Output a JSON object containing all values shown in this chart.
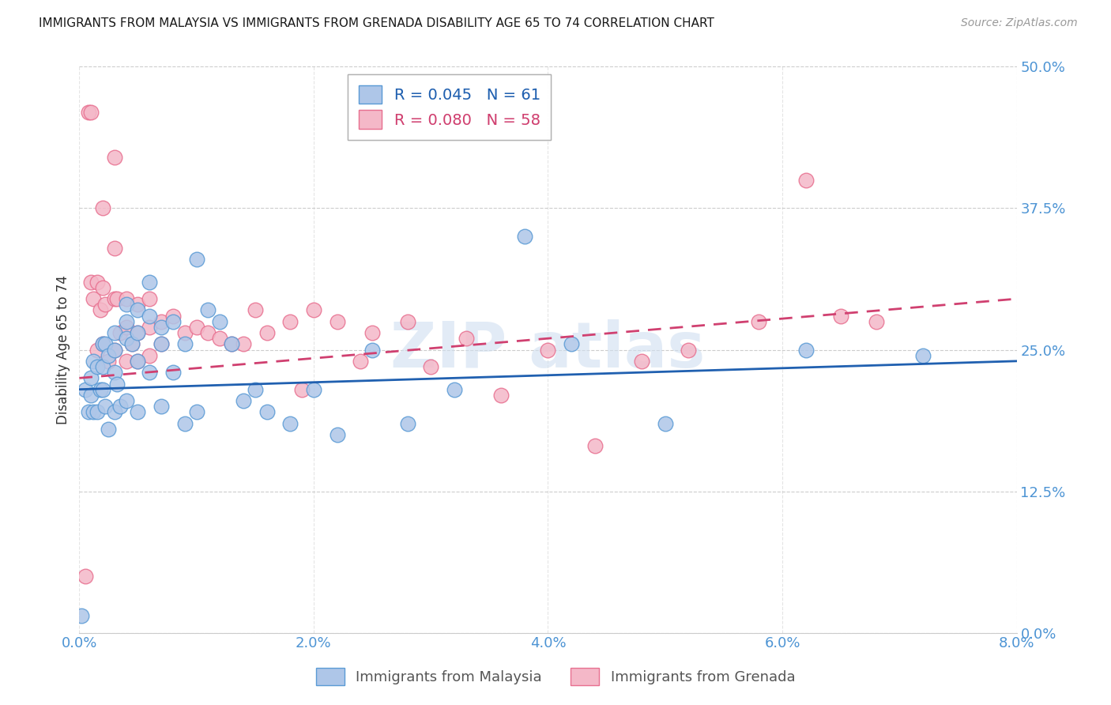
{
  "title": "IMMIGRANTS FROM MALAYSIA VS IMMIGRANTS FROM GRENADA DISABILITY AGE 65 TO 74 CORRELATION CHART",
  "source": "Source: ZipAtlas.com",
  "ylabel": "Disability Age 65 to 74",
  "xlim": [
    0.0,
    0.08
  ],
  "ylim": [
    0.0,
    0.5
  ],
  "malaysia_color": "#aec6e8",
  "grenada_color": "#f4b8c8",
  "malaysia_edge": "#5b9bd5",
  "grenada_edge": "#e87090",
  "line_malaysia_color": "#2060b0",
  "line_grenada_color": "#d04070",
  "malaysia_R": 0.045,
  "malaysia_N": 61,
  "grenada_R": 0.08,
  "grenada_N": 58,
  "malaysia_line_x0": 0.0,
  "malaysia_line_y0": 0.215,
  "malaysia_line_x1": 0.08,
  "malaysia_line_y1": 0.24,
  "grenada_line_x0": 0.0,
  "grenada_line_y0": 0.225,
  "grenada_line_x1": 0.08,
  "grenada_line_y1": 0.295,
  "malaysia_scatter_x": [
    0.0002,
    0.0005,
    0.0008,
    0.001,
    0.001,
    0.0012,
    0.0012,
    0.0015,
    0.0015,
    0.0018,
    0.002,
    0.002,
    0.002,
    0.0022,
    0.0022,
    0.0025,
    0.0025,
    0.003,
    0.003,
    0.003,
    0.003,
    0.0032,
    0.0035,
    0.004,
    0.004,
    0.004,
    0.004,
    0.0045,
    0.005,
    0.005,
    0.005,
    0.005,
    0.006,
    0.006,
    0.006,
    0.007,
    0.007,
    0.007,
    0.008,
    0.008,
    0.009,
    0.009,
    0.01,
    0.01,
    0.011,
    0.012,
    0.013,
    0.014,
    0.015,
    0.016,
    0.018,
    0.02,
    0.022,
    0.025,
    0.028,
    0.032,
    0.038,
    0.042,
    0.05,
    0.062,
    0.072
  ],
  "malaysia_scatter_y": [
    0.015,
    0.215,
    0.195,
    0.225,
    0.21,
    0.24,
    0.195,
    0.235,
    0.195,
    0.215,
    0.255,
    0.235,
    0.215,
    0.255,
    0.2,
    0.245,
    0.18,
    0.265,
    0.25,
    0.23,
    0.195,
    0.22,
    0.2,
    0.29,
    0.275,
    0.26,
    0.205,
    0.255,
    0.285,
    0.265,
    0.24,
    0.195,
    0.31,
    0.28,
    0.23,
    0.27,
    0.255,
    0.2,
    0.275,
    0.23,
    0.255,
    0.185,
    0.33,
    0.195,
    0.285,
    0.275,
    0.255,
    0.205,
    0.215,
    0.195,
    0.185,
    0.215,
    0.175,
    0.25,
    0.185,
    0.215,
    0.35,
    0.255,
    0.185,
    0.25,
    0.245
  ],
  "grenada_scatter_x": [
    0.0005,
    0.0008,
    0.001,
    0.001,
    0.0012,
    0.0015,
    0.0015,
    0.0018,
    0.002,
    0.002,
    0.002,
    0.0022,
    0.0025,
    0.003,
    0.003,
    0.003,
    0.003,
    0.0032,
    0.0035,
    0.004,
    0.004,
    0.004,
    0.0045,
    0.005,
    0.005,
    0.005,
    0.006,
    0.006,
    0.006,
    0.007,
    0.007,
    0.008,
    0.009,
    0.01,
    0.011,
    0.012,
    0.013,
    0.014,
    0.015,
    0.016,
    0.018,
    0.019,
    0.02,
    0.022,
    0.024,
    0.025,
    0.028,
    0.03,
    0.033,
    0.036,
    0.04,
    0.044,
    0.048,
    0.052,
    0.058,
    0.062,
    0.065,
    0.068
  ],
  "grenada_scatter_y": [
    0.05,
    0.46,
    0.46,
    0.31,
    0.295,
    0.31,
    0.25,
    0.285,
    0.375,
    0.305,
    0.255,
    0.29,
    0.24,
    0.42,
    0.34,
    0.295,
    0.25,
    0.295,
    0.265,
    0.295,
    0.27,
    0.24,
    0.255,
    0.29,
    0.265,
    0.24,
    0.295,
    0.27,
    0.245,
    0.275,
    0.255,
    0.28,
    0.265,
    0.27,
    0.265,
    0.26,
    0.255,
    0.255,
    0.285,
    0.265,
    0.275,
    0.215,
    0.285,
    0.275,
    0.24,
    0.265,
    0.275,
    0.235,
    0.26,
    0.21,
    0.25,
    0.165,
    0.24,
    0.25,
    0.275,
    0.4,
    0.28,
    0.275
  ],
  "background_color": "#ffffff",
  "grid_color": "#cccccc",
  "title_color": "#1a1a1a",
  "tick_label_color": "#4d94d4",
  "watermark_color": "#d0dff0",
  "watermark_alpha": 0.6
}
